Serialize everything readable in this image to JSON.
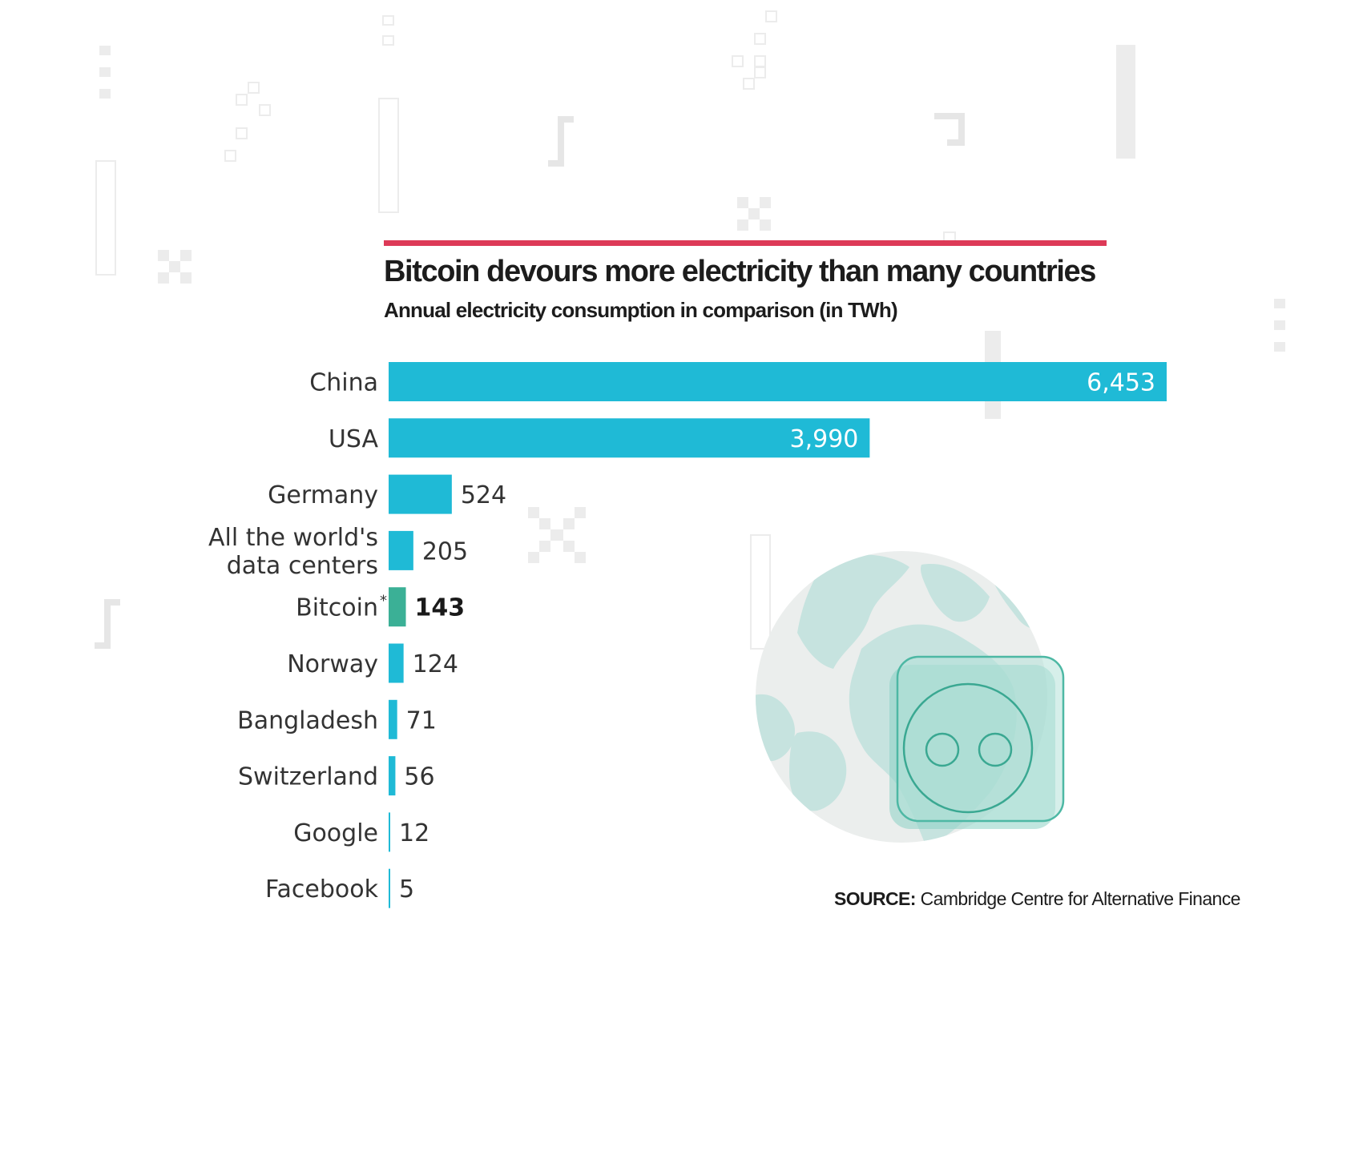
{
  "header": {
    "title": "Bitcoin devours more electricity than many countries",
    "subtitle": "Annual electricity consumption in comparison (in TWh)"
  },
  "source": {
    "label": "SOURCE:",
    "text": "Cambridge Centre for Alternative Finance"
  },
  "icons": {
    "illustration": "globe-with-power-socket-icon"
  },
  "colors": {
    "bar": "#1fbad6",
    "bar_highlight": "#3bb096",
    "accent_rule": "#dd3a57",
    "text": "#333333"
  },
  "chart_data": {
    "type": "bar",
    "orientation": "horizontal",
    "title": "Bitcoin devours more electricity than many countries",
    "subtitle": "Annual electricity consumption in comparison (in TWh)",
    "unit": "TWh",
    "categories": [
      "China",
      "USA",
      "Germany",
      "All the world's data centers",
      "Bitcoin",
      "Norway",
      "Bangladesh",
      "Switzerland",
      "Google",
      "Facebook"
    ],
    "category_lines": [
      [
        "China"
      ],
      [
        "USA"
      ],
      [
        "Germany"
      ],
      [
        "All the world's",
        "data centers"
      ],
      [
        "Bitcoin"
      ],
      [
        "Norway"
      ],
      [
        "Bangladesh"
      ],
      [
        "Switzerland"
      ],
      [
        "Google"
      ],
      [
        "Facebook"
      ]
    ],
    "values": [
      6453,
      3990,
      524,
      205,
      143,
      124,
      71,
      56,
      12,
      5
    ],
    "value_labels": [
      "6,453",
      "3,990",
      "524",
      "205",
      "143",
      "124",
      "71",
      "56",
      "12",
      "5"
    ],
    "highlight": "Bitcoin",
    "footnote_marker": "*",
    "xlim": [
      0,
      6453
    ],
    "grid": false,
    "legend": "none"
  }
}
